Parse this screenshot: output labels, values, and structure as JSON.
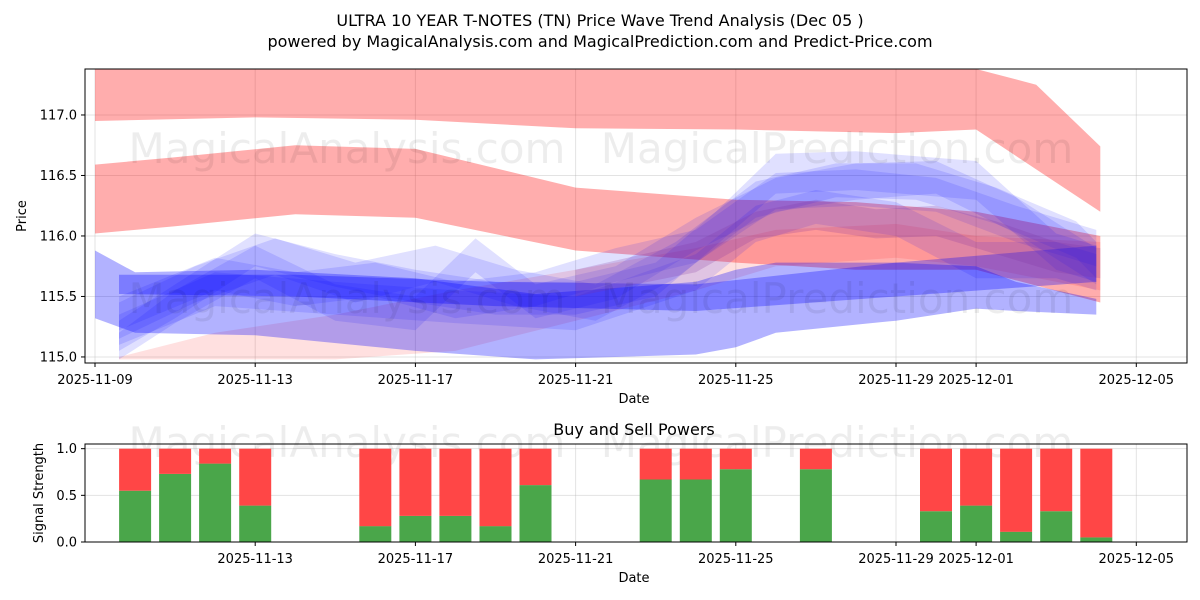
{
  "header": {
    "title": "ULTRA 10 YEAR T-NOTES (TN) Price Wave Trend Analysis (Dec 05 )",
    "subtitle": "powered by MagicalAnalysis.com and MagicalPrediction.com and Predict-Price.com"
  },
  "watermarks": {
    "left": "MagicalAnalysis.com",
    "right": "MagicalPrediction.com"
  },
  "colors": {
    "red_band": "#ff0000",
    "blue_band": "#0000ff",
    "buy": "#4aa64a",
    "sell": "#ff4646"
  },
  "chart_data": [
    {
      "type": "area",
      "title": "",
      "xlabel": "Date",
      "ylabel": "Price",
      "ylim": [
        114.95,
        117.38
      ],
      "x_tick_labels": [
        "2025-11-09",
        "2025-11-13",
        "2025-11-17",
        "2025-11-21",
        "2025-11-25",
        "2025-11-29",
        "2025-12-01",
        "2025-12-05"
      ],
      "y_tick_labels": [
        "115.0",
        "115.5",
        "116.0",
        "116.5",
        "117.0"
      ],
      "grid": true,
      "red_bands": [
        {
          "name": "upper red band",
          "x": [
            0,
            4,
            8,
            12,
            16,
            20,
            22,
            23.5,
            25.1
          ],
          "upper": [
            117.38,
            117.38,
            117.38,
            117.38,
            117.38,
            117.38,
            117.38,
            117.25,
            116.74
          ],
          "lower": [
            116.95,
            116.98,
            116.96,
            116.89,
            116.88,
            116.85,
            116.88,
            116.55,
            116.2
          ]
        },
        {
          "name": "middle red band",
          "x": [
            0,
            2,
            5,
            8,
            12,
            16,
            19,
            22,
            25.1
          ],
          "upper": [
            116.59,
            116.65,
            116.75,
            116.72,
            116.4,
            116.3,
            116.28,
            116.2,
            116.0
          ],
          "lower": [
            116.02,
            116.08,
            116.18,
            116.15,
            115.88,
            115.78,
            115.72,
            115.72,
            115.45
          ]
        },
        {
          "name": "lower red band",
          "x": [
            0.6,
            3,
            6,
            9,
            12,
            15,
            17,
            20,
            22,
            25.1
          ],
          "upper": [
            115.0,
            115.2,
            115.35,
            115.55,
            115.72,
            115.9,
            116.05,
            116.1,
            116.0,
            115.95
          ],
          "lower": [
            114.98,
            114.98,
            114.98,
            115.05,
            115.3,
            115.55,
            115.75,
            115.82,
            115.75,
            115.55
          ]
        }
      ],
      "blue_bands": [
        {
          "name": "wide lower blue band",
          "x": [
            0,
            1,
            4,
            8,
            11,
            15,
            16,
            17,
            20,
            22,
            23,
            25
          ],
          "upper": [
            115.88,
            115.7,
            115.72,
            115.65,
            115.52,
            115.62,
            115.72,
            115.78,
            115.78,
            115.75,
            115.62,
            115.48
          ],
          "lower": [
            115.32,
            115.2,
            115.18,
            115.05,
            114.98,
            115.02,
            115.08,
            115.2,
            115.3,
            115.4,
            115.38,
            115.35
          ]
        },
        {
          "name": "flat blue channel",
          "x": [
            0.6,
            5,
            10,
            15,
            20,
            25
          ],
          "upper": [
            115.68,
            115.68,
            115.62,
            115.6,
            115.78,
            115.92
          ],
          "lower": [
            115.52,
            115.5,
            115.42,
            115.38,
            115.5,
            115.62
          ]
        },
        {
          "name": "blue wave A",
          "x": [
            0.6,
            2,
            4,
            6,
            8,
            10,
            12,
            14,
            15.5,
            17,
            19,
            22,
            24,
            25
          ],
          "upper": [
            115.3,
            115.6,
            116.02,
            115.85,
            115.72,
            115.62,
            115.62,
            115.78,
            116.2,
            116.68,
            116.7,
            116.62,
            116.02,
            115.92
          ],
          "lower": [
            115.05,
            115.32,
            115.75,
            115.58,
            115.45,
            115.35,
            115.35,
            115.5,
            115.92,
            116.35,
            116.38,
            116.3,
            115.72,
            115.62
          ]
        },
        {
          "name": "blue wave B",
          "x": [
            0.6,
            3,
            5,
            7,
            9,
            11,
            13,
            15,
            17,
            19,
            21,
            23,
            25
          ],
          "upper": [
            115.5,
            115.82,
            115.7,
            115.78,
            115.62,
            115.7,
            115.9,
            116.05,
            116.52,
            116.55,
            116.48,
            116.25,
            116.05
          ],
          "lower": [
            115.22,
            115.55,
            115.42,
            115.5,
            115.32,
            115.42,
            115.62,
            115.78,
            116.22,
            116.25,
            116.2,
            115.95,
            115.75
          ]
        },
        {
          "name": "blue wave C",
          "x": [
            0.6,
            2.5,
            4.5,
            6.5,
            8.5,
            10.5,
            12.5,
            14.5,
            16.5,
            18.5,
            20.5,
            22.5,
            24.5,
            25
          ],
          "upper": [
            115.45,
            115.75,
            115.98,
            115.78,
            115.92,
            115.72,
            115.6,
            115.95,
            116.45,
            116.6,
            116.6,
            116.4,
            116.12,
            115.95
          ],
          "lower": [
            115.15,
            115.45,
            115.68,
            115.45,
            115.62,
            115.42,
            115.3,
            115.65,
            116.15,
            116.32,
            116.3,
            116.1,
            115.82,
            115.65
          ]
        },
        {
          "name": "blue wave D",
          "x": [
            0.6,
            2,
            4,
            6,
            8,
            9.5,
            11,
            13,
            15,
            17,
            19,
            21,
            23,
            25
          ],
          "upper": [
            115.2,
            115.55,
            115.92,
            115.6,
            115.5,
            115.98,
            115.6,
            115.75,
            116.15,
            116.48,
            116.6,
            116.62,
            116.32,
            115.9
          ],
          "lower": [
            114.98,
            115.28,
            115.65,
            115.3,
            115.22,
            115.7,
            115.32,
            115.48,
            115.88,
            116.2,
            116.3,
            116.35,
            116.02,
            115.6
          ]
        },
        {
          "name": "blue wave E",
          "x": [
            0.6,
            3,
            6,
            9,
            12,
            15,
            16.5,
            18,
            20,
            22,
            24,
            25
          ],
          "upper": [
            115.35,
            115.7,
            115.62,
            115.55,
            115.5,
            115.85,
            116.25,
            116.38,
            116.28,
            115.95,
            115.95,
            115.85
          ],
          "lower": [
            115.1,
            115.42,
            115.35,
            115.28,
            115.22,
            115.55,
            115.95,
            116.1,
            116.0,
            115.65,
            115.65,
            115.55
          ]
        },
        {
          "name": "purple overlap band",
          "x": [
            12,
            15,
            16.5,
            18,
            19.5,
            21,
            22.5,
            24,
            25.1
          ],
          "upper": [
            115.72,
            115.95,
            116.2,
            116.3,
            116.22,
            116.25,
            116.12,
            115.95,
            115.9
          ],
          "lower": [
            115.5,
            115.7,
            115.98,
            116.05,
            115.98,
            116.0,
            115.85,
            115.7,
            115.65
          ]
        }
      ]
    },
    {
      "type": "bar",
      "title": "Buy and Sell Powers",
      "xlabel": "Date",
      "ylabel": "Signal Strength",
      "ylim": [
        0,
        1.05
      ],
      "y_tick_labels": [
        "0.0",
        "0.5",
        "1.0"
      ],
      "x_tick_labels": [
        "2025-11-13",
        "2025-11-17",
        "2025-11-21",
        "2025-11-25",
        "2025-11-29",
        "2025-12-01",
        "2025-12-05"
      ],
      "grid": true,
      "series": [
        {
          "name": "Buy",
          "x": [
            1,
            2,
            3,
            4,
            7,
            8,
            9,
            10,
            11,
            14,
            15,
            16,
            18,
            21,
            22,
            23,
            24,
            25
          ],
          "values": [
            0.55,
            0.73,
            0.84,
            0.39,
            0.17,
            0.28,
            0.28,
            0.17,
            0.61,
            0.67,
            0.67,
            0.78,
            0.78,
            0.33,
            0.39,
            0.11,
            0.33,
            0.05
          ]
        },
        {
          "name": "Sell",
          "x": [
            1,
            2,
            3,
            4,
            7,
            8,
            9,
            10,
            11,
            14,
            15,
            16,
            18,
            21,
            22,
            23,
            24,
            25
          ],
          "values": [
            0.45,
            0.27,
            0.16,
            0.61,
            0.83,
            0.72,
            0.72,
            0.83,
            0.39,
            0.33,
            0.33,
            0.22,
            0.22,
            0.67,
            0.61,
            0.89,
            0.67,
            0.95
          ]
        }
      ]
    }
  ]
}
